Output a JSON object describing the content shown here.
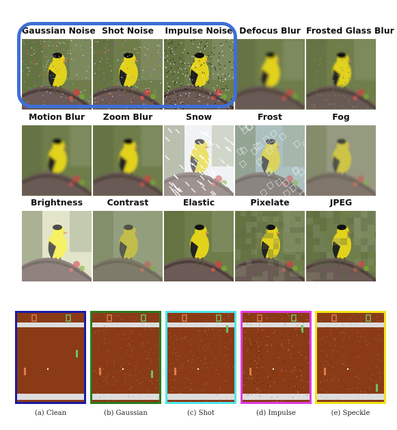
{
  "corruptions": [
    {
      "label": "Gaussian Noise",
      "effect": "gaussian"
    },
    {
      "label": "Shot Noise",
      "effect": "shot"
    },
    {
      "label": "Impulse Noise",
      "effect": "impulse"
    },
    {
      "label": "Defocus Blur",
      "effect": "defocus"
    },
    {
      "label": "Frosted Glass Blur",
      "effect": "glass"
    },
    {
      "label": "Motion Blur",
      "effect": "motion"
    },
    {
      "label": "Zoom Blur",
      "effect": "zoom"
    },
    {
      "label": "Snow",
      "effect": "snow"
    },
    {
      "label": "Frost",
      "effect": "frost"
    },
    {
      "label": "Fog",
      "effect": "fog"
    },
    {
      "label": "Brightness",
      "effect": "brightness"
    },
    {
      "label": "Contrast",
      "effect": "contrast"
    },
    {
      "label": "Elastic",
      "effect": "elastic"
    },
    {
      "label": "Pixelate",
      "effect": "pixelate"
    },
    {
      "label": "JPEG",
      "effect": "jpeg"
    }
  ],
  "pong_panels": [
    {
      "caption": "(a) Clean",
      "border": "#1a1aa8",
      "noise": "none"
    },
    {
      "caption": "(b) Gaussian",
      "border": "#2a7a1e",
      "noise": "gaussian"
    },
    {
      "caption": "(c) Shot",
      "border": "#4fe6ea",
      "noise": "shot"
    },
    {
      "caption": "(d) Impulse",
      "border": "#e03ce0",
      "noise": "impulse"
    },
    {
      "caption": "(e) Speckle",
      "border": "#f2e21a",
      "noise": "speckle"
    }
  ],
  "colors": {
    "highlight": "#3f6fd6",
    "pong_field": "#8a3b16",
    "bird": "#e2d21c",
    "branch": "#6b5a55",
    "foliage": "#6e7d4a"
  }
}
